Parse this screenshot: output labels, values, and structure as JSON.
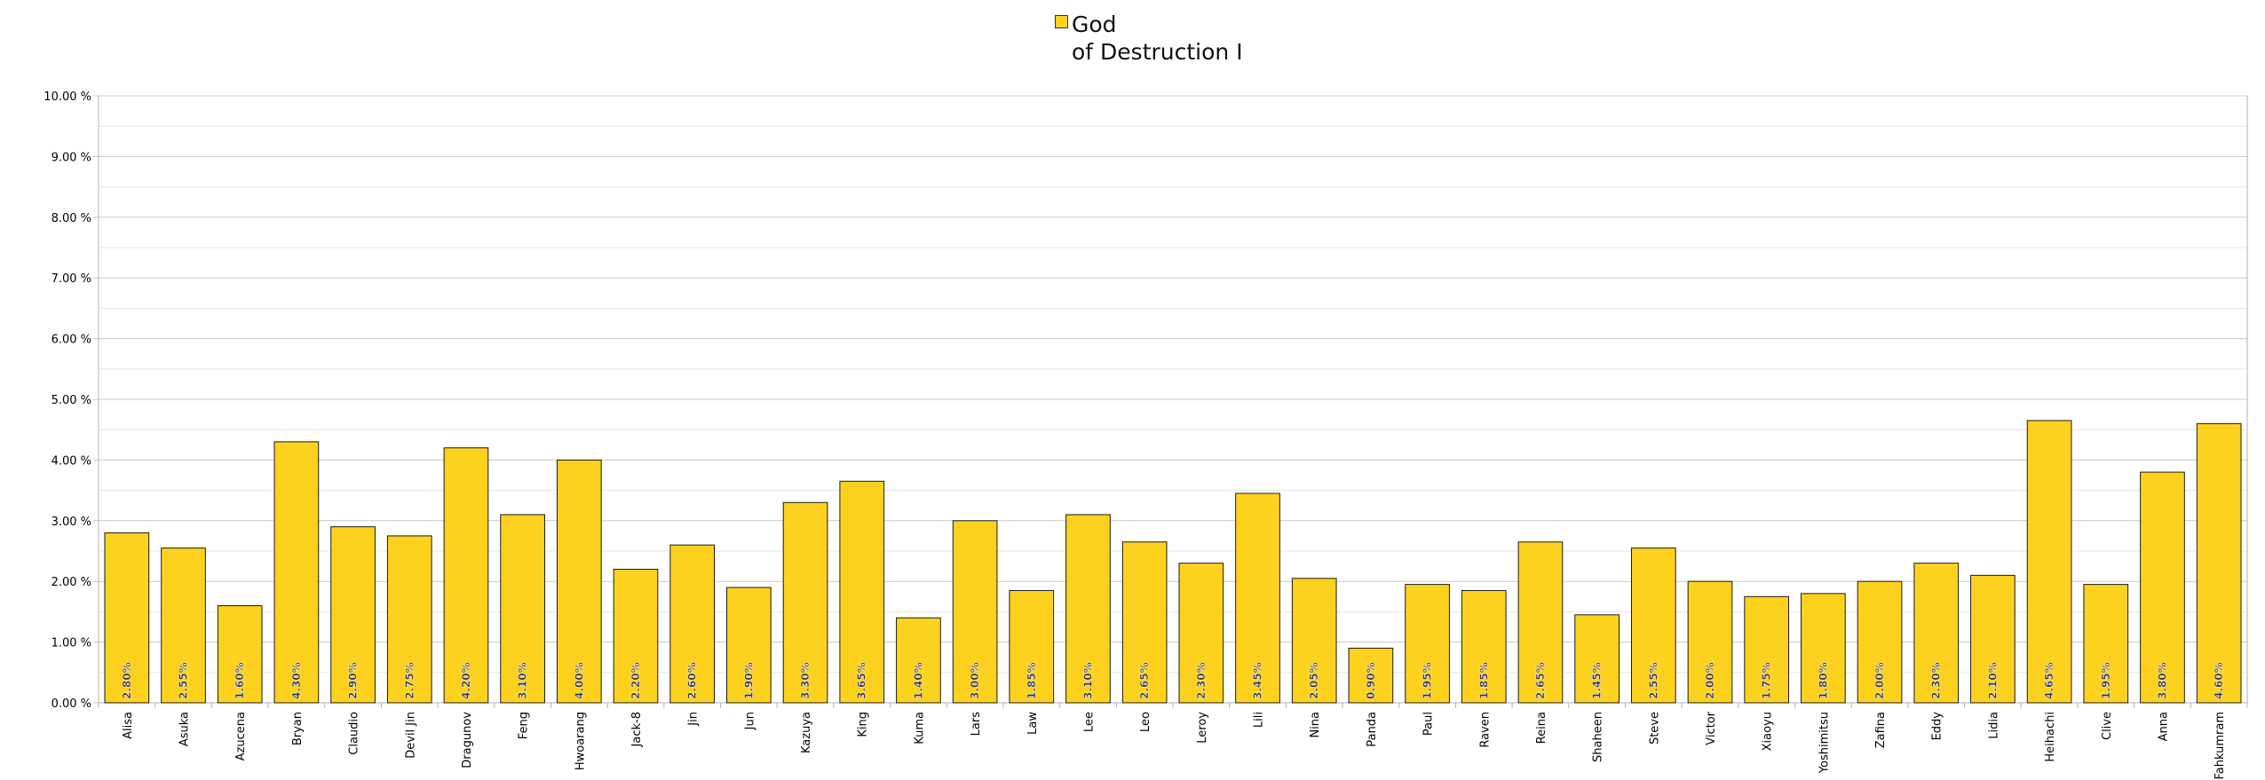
{
  "chart_data": {
    "type": "bar",
    "series": [
      {
        "name": "God\nof Destruction I",
        "color": "#fdd21f",
        "values": [
          2.8,
          2.55,
          1.6,
          4.3,
          2.9,
          2.75,
          4.2,
          3.1,
          4.0,
          2.2,
          2.6,
          1.9,
          3.3,
          3.65,
          1.4,
          3.0,
          1.85,
          3.1,
          2.65,
          2.3,
          3.45,
          2.05,
          0.9,
          1.95,
          1.85,
          2.65,
          1.45,
          2.55,
          2.0,
          1.75,
          1.8,
          2.0,
          2.3,
          2.1,
          4.65,
          1.95,
          3.8,
          4.6
        ]
      }
    ],
    "categories": [
      "Alisa",
      "Asuka",
      "Azucena",
      "Bryan",
      "Claudio",
      "Devil Jin",
      "Dragunov",
      "Feng",
      "Hwoarang",
      "Jack-8",
      "Jin",
      "Jun",
      "Kazuya",
      "King",
      "Kuma",
      "Lars",
      "Law",
      "Lee",
      "Leo",
      "Leroy",
      "Lili",
      "Nina",
      "Panda",
      "Paul",
      "Raven",
      "Reina",
      "Shaheen",
      "Steve",
      "Victor",
      "Xiaoyu",
      "Yoshimitsu",
      "Zafina",
      "Eddy",
      "Lidia",
      "Heihachi",
      "Clive",
      "Anna",
      "Fahkumram"
    ],
    "data_labels": [
      "2.80%",
      "2.55%",
      "1.60%",
      "4.30%",
      "2.90%",
      "2.75%",
      "4.20%",
      "3.10%",
      "4.00%",
      "2.20%",
      "2.60%",
      "1.90%",
      "3.30%",
      "3.65%",
      "1.40%",
      "3.00%",
      "1.85%",
      "3.10%",
      "2.65%",
      "2.30%",
      "3.45%",
      "2.05%",
      "0.90%",
      "1.95%",
      "1.85%",
      "2.65%",
      "1.45%",
      "2.55%",
      "2.00%",
      "1.75%",
      "1.80%",
      "2.00%",
      "2.30%",
      "2.10%",
      "4.65%",
      "1.95%",
      "3.80%",
      "4.60%"
    ],
    "ylim": [
      0,
      10
    ],
    "y_ticks": [
      "0.00 %",
      "1.00 %",
      "2.00 %",
      "3.00 %",
      "4.00 %",
      "5.00 %",
      "6.00 %",
      "7.00 %",
      "8.00 %",
      "9.00 %",
      "10.00 %"
    ],
    "title": "",
    "xlabel": "",
    "ylabel": "",
    "grid": true,
    "legend_position": "top-center"
  }
}
